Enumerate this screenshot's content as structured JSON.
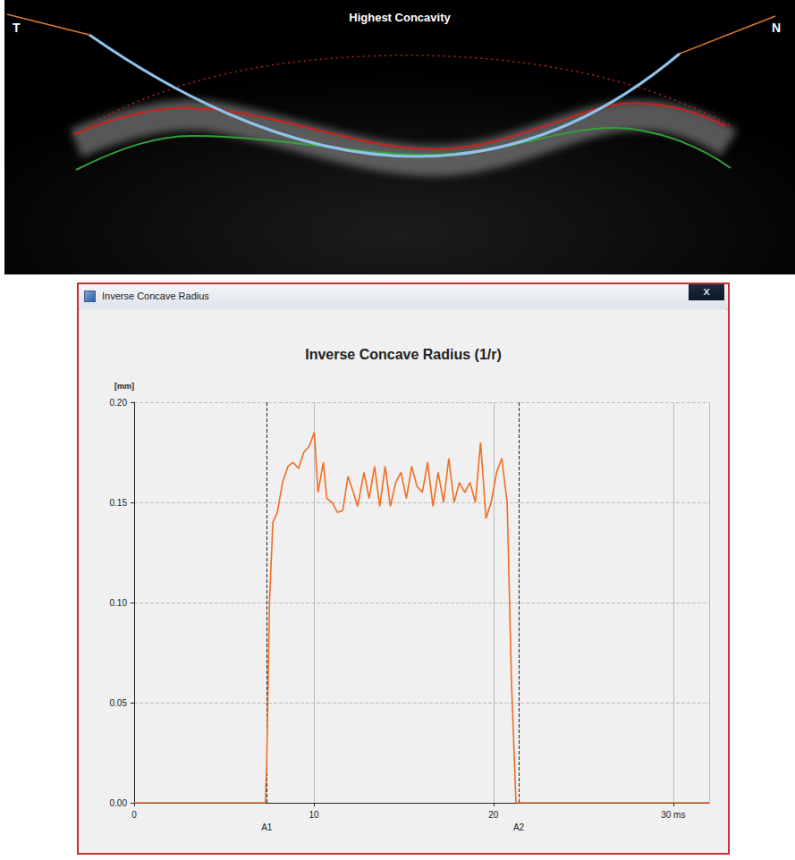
{
  "image": {
    "title": "Highest Concavity",
    "left_label": "T",
    "right_label": "N"
  },
  "window": {
    "title": "Inverse Concave Radius",
    "close": "x"
  },
  "chart_data": {
    "type": "line",
    "title": "Inverse Concave Radius (1/r)",
    "y_label": "[mm]",
    "color": "#f26d21",
    "x": [
      0,
      7.3,
      7.38,
      7.53,
      7.72,
      7.97,
      8.26,
      8.56,
      8.85,
      9.15,
      9.44,
      9.74,
      10.03,
      10.23,
      10.53,
      10.72,
      11.02,
      11.31,
      11.61,
      11.9,
      12.2,
      12.44,
      12.79,
      13.08,
      13.38,
      13.67,
      13.97,
      14.26,
      14.56,
      14.85,
      15.15,
      15.45,
      15.74,
      16.04,
      16.33,
      16.63,
      16.92,
      17.22,
      17.51,
      17.81,
      18.1,
      18.4,
      18.69,
      18.99,
      19.28,
      19.58,
      19.87,
      20.17,
      20.46,
      20.76,
      21.0,
      21.25,
      32
    ],
    "values": [
      0,
      0,
      0.02,
      0.1,
      0.14,
      0.145,
      0.16,
      0.168,
      0.17,
      0.167,
      0.175,
      0.178,
      0.185,
      0.155,
      0.17,
      0.152,
      0.15,
      0.145,
      0.146,
      0.163,
      0.155,
      0.148,
      0.165,
      0.152,
      0.168,
      0.148,
      0.168,
      0.148,
      0.16,
      0.165,
      0.152,
      0.168,
      0.158,
      0.155,
      0.17,
      0.148,
      0.165,
      0.15,
      0.172,
      0.15,
      0.16,
      0.155,
      0.16,
      0.15,
      0.18,
      0.142,
      0.15,
      0.165,
      0.172,
      0.15,
      0.06,
      0,
      0
    ],
    "xlim": [
      0,
      32
    ],
    "xticks": [
      0,
      10,
      20,
      {
        "value": 30,
        "label": "30 ms"
      }
    ],
    "ylim": [
      0,
      0.2
    ],
    "yticks": [
      {
        "value": 0,
        "label": "0.00"
      },
      {
        "value": 0.05,
        "label": "0.05"
      },
      {
        "value": 0.1,
        "label": "0.10"
      },
      {
        "value": 0.15,
        "label": "0.15"
      },
      {
        "value": 0.2,
        "label": "0.20"
      }
    ],
    "grid": true,
    "annotations": [
      {
        "text": "A1",
        "x": 7.38
      },
      {
        "text": "A2",
        "x": 21.4
      }
    ]
  }
}
